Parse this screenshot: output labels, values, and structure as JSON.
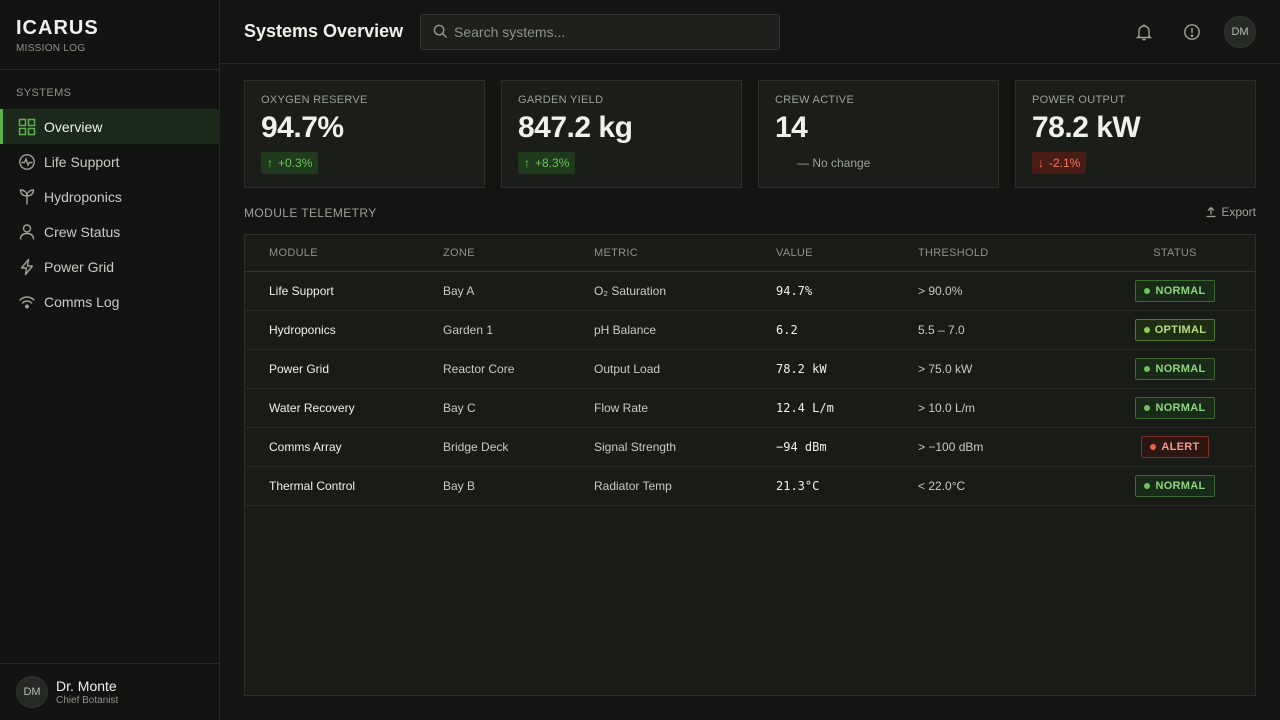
{
  "brand": {
    "title": "ICARUS",
    "subtitle": "MISSION LOG"
  },
  "sidebar": {
    "section": "SYSTEMS",
    "items": [
      {
        "label": "Overview",
        "icon": "grid-icon",
        "active": true
      },
      {
        "label": "Life Support",
        "icon": "pulse-icon"
      },
      {
        "label": "Hydroponics",
        "icon": "sprout-icon"
      },
      {
        "label": "Crew Status",
        "icon": "person-icon"
      },
      {
        "label": "Power Grid",
        "icon": "bolt-icon"
      },
      {
        "label": "Comms Log",
        "icon": "signal-icon"
      }
    ]
  },
  "user": {
    "initials": "DM",
    "name": "Dr. Monte",
    "role": "Chief Botanist"
  },
  "header": {
    "title": "Systems Overview",
    "search_placeholder": "Search systems...",
    "avatar_initials": "DM"
  },
  "stats": [
    {
      "label": "OXYGEN RESERVE",
      "value": "94.7%",
      "delta": "+0.3%",
      "trend": "up"
    },
    {
      "label": "GARDEN YIELD",
      "value": "847.2 kg",
      "delta": "+8.3%",
      "trend": "up"
    },
    {
      "label": "CREW ACTIVE",
      "value": "14",
      "delta": "— No change",
      "trend": "none"
    },
    {
      "label": "POWER OUTPUT",
      "value": "78.2 kW",
      "delta": "-2.1%",
      "trend": "down"
    }
  ],
  "telemetry": {
    "title": "MODULE TELEMETRY",
    "export_label": "Export",
    "columns": [
      "MODULE",
      "ZONE",
      "METRIC",
      "VALUE",
      "THRESHOLD",
      "STATUS"
    ],
    "rows": [
      {
        "module": "Life Support",
        "zone": "Bay A",
        "metric": "O₂ Saturation",
        "value": "94.7%",
        "threshold": "> 90.0%",
        "status": "NORMAL"
      },
      {
        "module": "Hydroponics",
        "zone": "Garden 1",
        "metric": "pH Balance",
        "value": "6.2",
        "threshold": "5.5 – 7.0",
        "status": "OPTIMAL"
      },
      {
        "module": "Power Grid",
        "zone": "Reactor Core",
        "metric": "Output Load",
        "value": "78.2 kW",
        "threshold": "> 75.0 kW",
        "status": "NORMAL"
      },
      {
        "module": "Water Recovery",
        "zone": "Bay C",
        "metric": "Flow Rate",
        "value": "12.4 L/m",
        "threshold": "> 10.0 L/m",
        "status": "NORMAL"
      },
      {
        "module": "Comms Array",
        "zone": "Bridge Deck",
        "metric": "Signal Strength",
        "value": "−94 dBm",
        "threshold": "> −100 dBm",
        "status": "ALERT"
      },
      {
        "module": "Thermal Control",
        "zone": "Bay B",
        "metric": "Radiator Temp",
        "value": "21.3°C",
        "threshold": "< 22.0°C",
        "status": "NORMAL"
      }
    ]
  },
  "colors": {
    "accent": "#5fb04f",
    "alert": "#e8644a",
    "background": "#131512"
  }
}
